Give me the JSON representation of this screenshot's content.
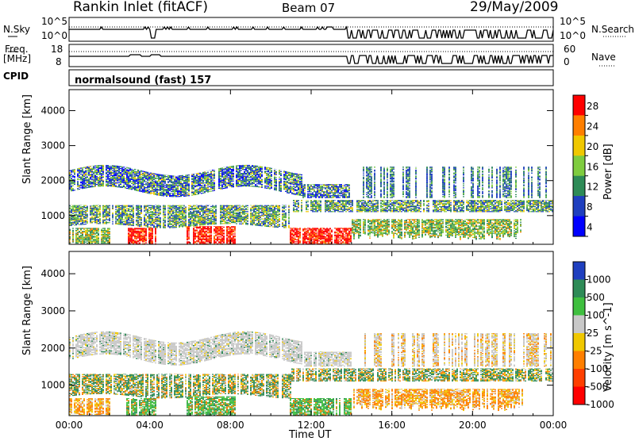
{
  "header": {
    "station": "Rankin Inlet (fitACF)",
    "beam": "Beam 07",
    "date": "29/May/2009"
  },
  "strip1": {
    "left_label": "N.Sky",
    "right_label": "N.Search",
    "left_ticks": [
      "10^5",
      "10^0"
    ],
    "right_ticks": [
      "10^5",
      "10^0"
    ]
  },
  "strip2": {
    "left_label_1": "Freq.",
    "left_label_2": "[MHz]",
    "right_label": "Nave",
    "left_ticks": [
      "18",
      "8"
    ],
    "right_ticks": [
      "60",
      "0"
    ]
  },
  "cpid": {
    "label": "CPID",
    "value": "normalsound (fast) 157"
  },
  "chart_data": [
    {
      "type": "heatmap",
      "ylabel": "Slant Range [km]",
      "xlabel": "Time UT",
      "x_ticks": [
        "00:00",
        "04:00",
        "08:00",
        "12:00",
        "16:00",
        "20:00",
        "00:00"
      ],
      "y_ticks": [
        1000,
        2000,
        3000,
        4000
      ],
      "ylim": [
        180,
        4600
      ],
      "xlim_hours": [
        0,
        24
      ],
      "colorbar": {
        "label": "Power [dB]",
        "ticks": [
          28,
          24,
          20,
          16,
          12,
          8,
          4
        ],
        "colors": [
          "#ff0000",
          "#ff7f00",
          "#f0c800",
          "#7fcc3f",
          "#2e8b57",
          "#1f3fbf",
          "#0000ff"
        ]
      }
    },
    {
      "type": "heatmap",
      "ylabel": "Slant Range [km]",
      "xlabel": "Time UT",
      "x_ticks": [
        "00:00",
        "04:00",
        "08:00",
        "12:00",
        "16:00",
        "20:00",
        "00:00"
      ],
      "y_ticks": [
        1000,
        2000,
        3000,
        4000
      ],
      "ylim": [
        180,
        4600
      ],
      "xlim_hours": [
        0,
        24
      ],
      "colorbar": {
        "label": "Velocity [m s^-1]",
        "ticks": [
          1000,
          500,
          100,
          25,
          -25,
          -100,
          -500,
          -1000
        ],
        "colors": [
          "#1f3fbf",
          "#2e8b57",
          "#3fbf3f",
          "#c8c8c8",
          "#f0c800",
          "#ff7f00",
          "#ff3f00",
          "#ff0000"
        ]
      }
    }
  ]
}
